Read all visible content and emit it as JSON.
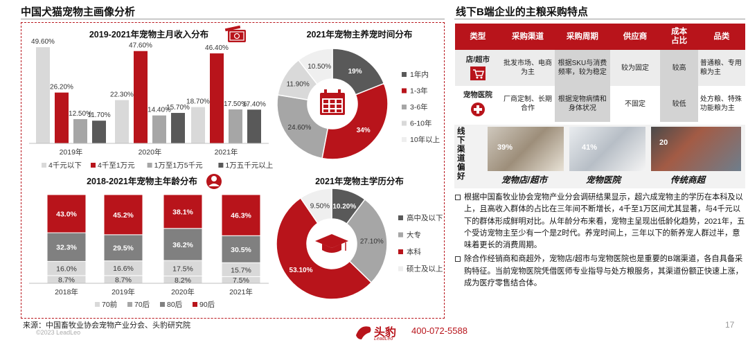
{
  "page": {
    "left_title": "中国犬猫宠物主画像分析",
    "right_title": "线下B端企业的主粮采购特点",
    "source": "来源：中国畜牧业协会宠物产业分会、头豹研究院",
    "copyright": "©2023 LeadLeo",
    "logo": "头豹",
    "logo_sub": "LeadLeo",
    "phone": "400-072-5588",
    "page_number": "17"
  },
  "colors": {
    "red": "#b8141b",
    "dark_gray": "#595959",
    "mid_gray": "#a6a6a6",
    "light_gray": "#d9d9d9"
  },
  "icons": [
    "money-icon",
    "person-icon",
    "calendar-icon",
    "graduation-cap-icon",
    "shopping-cart-icon",
    "medical-cross-icon"
  ],
  "chart_data": [
    {
      "id": "income",
      "type": "bar",
      "title": "2019-2021年宠物主月收入分布",
      "categories": [
        "2019年",
        "2020年",
        "2021年"
      ],
      "series": [
        {
          "name": "4千元以下",
          "color": "#d9d9d9",
          "values": [
            49.6,
            22.3,
            18.7
          ]
        },
        {
          "name": "4千至1万元",
          "color": "#b8141b",
          "values": [
            26.2,
            47.6,
            46.4
          ]
        },
        {
          "name": "1万至1万5千元",
          "color": "#a6a6a6",
          "values": [
            12.5,
            14.4,
            17.5
          ]
        },
        {
          "name": "1万五千元以上",
          "color": "#595959",
          "values": [
            11.7,
            15.7,
            17.4
          ]
        }
      ],
      "labels": [
        [
          "49.60%",
          "26.20%",
          "12.50%",
          "11.70%"
        ],
        [
          "22.30%",
          "47.60%",
          "14.40%",
          "15.70%"
        ],
        [
          "18.70%",
          "46.40%",
          "17.50%",
          "17.40%"
        ]
      ],
      "ylim": [
        0,
        50
      ]
    },
    {
      "id": "age",
      "type": "bar",
      "stacked": true,
      "title": "2018-2021年宠物主年龄分布",
      "categories": [
        "2018年",
        "2019年",
        "2020年",
        "2021年"
      ],
      "series": [
        {
          "name": "70前",
          "color": "#d9d9d9",
          "values": [
            8.7,
            8.7,
            8.2,
            7.5
          ]
        },
        {
          "name": "70后",
          "color": "#d9d9d9",
          "values": [
            16.0,
            16.6,
            17.5,
            15.7
          ]
        },
        {
          "name": "80后",
          "color": "#808080",
          "values": [
            32.3,
            29.5,
            36.2,
            30.5
          ]
        },
        {
          "name": "90后",
          "color": "#b8141b",
          "values": [
            43.0,
            45.2,
            38.1,
            46.3
          ]
        }
      ],
      "legend_colors": [
        "#d9d9d9",
        "#a6a6a6",
        "#808080",
        "#b8141b"
      ],
      "labels": [
        [
          "8.7%",
          "16.0%",
          "32.3%",
          "43.0%"
        ],
        [
          "8.7%",
          "16.6%",
          "29.5%",
          "45.2%"
        ],
        [
          "8.2%",
          "17.5%",
          "36.2%",
          "38.1%"
        ],
        [
          "7.5%",
          "15.7%",
          "30.5%",
          "46.3%"
        ]
      ]
    },
    {
      "id": "pet_years",
      "type": "pie",
      "donut": true,
      "title": "2021年宠物主养宠时间分布",
      "slices": [
        {
          "name": "1年内",
          "value": 19,
          "label": "19%",
          "color": "#595959"
        },
        {
          "name": "1-3年",
          "value": 34,
          "label": "34%",
          "color": "#b8141b"
        },
        {
          "name": "3-6年",
          "value": 24.6,
          "label": "24.60%",
          "color": "#a6a6a6"
        },
        {
          "name": "6-10年",
          "value": 11.9,
          "label": "11.90%",
          "color": "#d9d9d9"
        },
        {
          "name": "10年以上",
          "value": 10.5,
          "label": "10.50%",
          "color": "#efefef"
        }
      ]
    },
    {
      "id": "education",
      "type": "pie",
      "donut": true,
      "title": "2021年宠物主学历分布",
      "slices": [
        {
          "name": "高中及以下",
          "value": 10.2,
          "label": "10.20%",
          "color": "#595959"
        },
        {
          "name": "大专",
          "value": 27.1,
          "label": "27.10%",
          "color": "#a6a6a6"
        },
        {
          "name": "本科",
          "value": 53.1,
          "label": "53.10%",
          "color": "#b8141b"
        },
        {
          "name": "硕士及以上",
          "value": 9.5,
          "label": "9.50%",
          "color": "#efefef"
        }
      ]
    }
  ],
  "table": {
    "headers": [
      "类型",
      "采购渠道",
      "采购周期",
      "供应商",
      "成本\n占比",
      "品类"
    ],
    "rows": [
      {
        "type": "店/超市",
        "channel": "批发市场、电商为主",
        "cycle": "根据SKU与消费频率，较为稳定",
        "supplier": "较为固定",
        "cost": "较高",
        "category": "普通粮、专用粮为主"
      },
      {
        "type": "宠物医院",
        "channel": "厂商定制、长期合作",
        "cycle": "根据宠物病情和身体状况",
        "supplier": "不固定",
        "cost": "较低",
        "category": "处方粮、特殊功能粮为主"
      }
    ]
  },
  "preference": {
    "label": "线下渠道偏好",
    "items": [
      {
        "pct": "39%",
        "caption": "宠物店/超市"
      },
      {
        "pct": "41%",
        "caption": "宠物医院"
      },
      {
        "pct": "20",
        "caption": "传统商超"
      }
    ]
  },
  "bullets": [
    "根据中国畜牧业协会宠物产业分会调研结果显示，超六成宠物主的学历在本科及以上，且高收入群体的占比在三年间不断增长，4千至1万区间尤其显著，与4千元以下的群体形成鲜明对比。从年龄分布来看，宠物主呈现出低龄化趋势，2021年，五个受访宠物主至少有一个是Z时代。养宠时间上，三年以下的新养宠人群过半，意味着更长的消费周期。",
    "除合作经销商和商超外，宠物店/超市与宠物医院也是重要的B端渠道，各自具备采购特征。当前宠物医院凭借医师专业指导与处方粮服务，其渠道份额正快速上涨，成为医疗零售结合体。"
  ]
}
